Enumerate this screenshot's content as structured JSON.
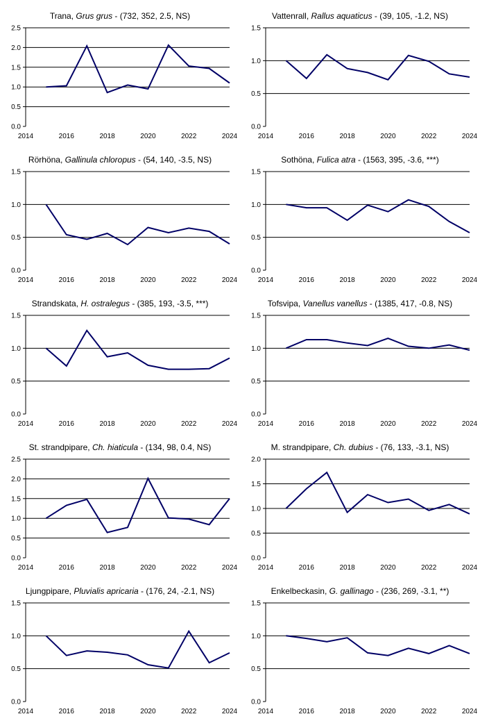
{
  "colors": {
    "line": "#000066",
    "axis": "#000000",
    "grid": "#000000",
    "background": "#ffffff"
  },
  "chart_data": [
    {
      "type": "line",
      "common_name": "Trana",
      "scientific_name": "Grus grus",
      "stats": " - (732, 352, 2.5, NS)",
      "x": [
        2015,
        2016,
        2017,
        2018,
        2019,
        2020,
        2021,
        2022,
        2023,
        2024
      ],
      "values": [
        1.0,
        1.03,
        2.04,
        0.86,
        1.05,
        0.95,
        2.06,
        1.53,
        1.47,
        1.1
      ],
      "ylim": [
        0,
        2.5
      ],
      "yticks": [
        "0.0",
        "0.5",
        "1.0",
        "1.5",
        "2.0",
        "2.5"
      ],
      "xlim": [
        2014,
        2024
      ],
      "xticks": [
        "2014",
        "2016",
        "2018",
        "2020",
        "2022",
        "2024"
      ],
      "grid": "horizontal"
    },
    {
      "type": "line",
      "common_name": "Vattenrall",
      "scientific_name": "Rallus aquaticus",
      "stats": " - (39, 105, -1.2, NS)",
      "x": [
        2015,
        2016,
        2017,
        2018,
        2019,
        2020,
        2021,
        2022,
        2023,
        2024
      ],
      "values": [
        1.0,
        0.73,
        1.09,
        0.88,
        0.82,
        0.71,
        1.08,
        0.99,
        0.8,
        0.75
      ],
      "ylim": [
        0,
        1.5
      ],
      "yticks": [
        "0.0",
        "0.5",
        "1.0",
        "1.5"
      ],
      "xlim": [
        2014,
        2024
      ],
      "xticks": [
        "2014",
        "2016",
        "2018",
        "2020",
        "2022",
        "2024"
      ],
      "grid": "horizontal"
    },
    {
      "type": "line",
      "common_name": "Rörhöna",
      "scientific_name": "Gallinula chloropus",
      "stats": " - (54, 140, -3.5, NS)",
      "x": [
        2015,
        2016,
        2017,
        2018,
        2019,
        2020,
        2021,
        2022,
        2023,
        2024
      ],
      "values": [
        1.0,
        0.54,
        0.47,
        0.56,
        0.39,
        0.65,
        0.57,
        0.64,
        0.59,
        0.4
      ],
      "ylim": [
        0,
        1.5
      ],
      "yticks": [
        "0.0",
        "0.5",
        "1.0",
        "1.5"
      ],
      "xlim": [
        2014,
        2024
      ],
      "xticks": [
        "2014",
        "2016",
        "2018",
        "2020",
        "2022",
        "2024"
      ],
      "grid": "horizontal"
    },
    {
      "type": "line",
      "common_name": "Sothöna",
      "scientific_name": "Fulica atra",
      "stats": " - (1563, 395, -3.6, ***)",
      "x": [
        2015,
        2016,
        2017,
        2018,
        2019,
        2020,
        2021,
        2022,
        2023,
        2024
      ],
      "values": [
        1.0,
        0.95,
        0.95,
        0.76,
        0.99,
        0.89,
        1.07,
        0.97,
        0.74,
        0.57
      ],
      "ylim": [
        0,
        1.5
      ],
      "yticks": [
        "0.0",
        "0.5",
        "1.0",
        "1.5"
      ],
      "xlim": [
        2014,
        2024
      ],
      "xticks": [
        "2014",
        "2016",
        "2018",
        "2020",
        "2022",
        "2024"
      ],
      "grid": "horizontal"
    },
    {
      "type": "line",
      "common_name": "Strandskata",
      "scientific_name": "H. ostralegus",
      "stats": " - (385, 193, -3.5, ***)",
      "x": [
        2015,
        2016,
        2017,
        2018,
        2019,
        2020,
        2021,
        2022,
        2023,
        2024
      ],
      "values": [
        1.0,
        0.73,
        1.27,
        0.87,
        0.93,
        0.74,
        0.68,
        0.68,
        0.69,
        0.85
      ],
      "ylim": [
        0,
        1.5
      ],
      "yticks": [
        "0.0",
        "0.5",
        "1.0",
        "1.5"
      ],
      "xlim": [
        2014,
        2024
      ],
      "xticks": [
        "2014",
        "2016",
        "2018",
        "2020",
        "2022",
        "2024"
      ],
      "grid": "horizontal"
    },
    {
      "type": "line",
      "common_name": "Tofsvipa",
      "scientific_name": "Vanellus vanellus",
      "stats": " - (1385, 417, -0.8, NS)",
      "x": [
        2015,
        2016,
        2017,
        2018,
        2019,
        2020,
        2021,
        2022,
        2023,
        2024
      ],
      "values": [
        1.0,
        1.13,
        1.13,
        1.08,
        1.04,
        1.15,
        1.03,
        1.0,
        1.05,
        0.97
      ],
      "ylim": [
        0,
        1.5
      ],
      "yticks": [
        "0.0",
        "0.5",
        "1.0",
        "1.5"
      ],
      "xlim": [
        2014,
        2024
      ],
      "xticks": [
        "2014",
        "2016",
        "2018",
        "2020",
        "2022",
        "2024"
      ],
      "grid": "horizontal"
    },
    {
      "type": "line",
      "common_name": "St. strandpipare",
      "scientific_name": "Ch. hiaticula",
      "stats": " - (134, 98, 0.4, NS)",
      "x": [
        2015,
        2016,
        2017,
        2018,
        2019,
        2020,
        2021,
        2022,
        2023,
        2024
      ],
      "values": [
        1.0,
        1.33,
        1.48,
        0.64,
        0.77,
        2.01,
        1.01,
        0.98,
        0.84,
        1.5
      ],
      "ylim": [
        0,
        2.5
      ],
      "yticks": [
        "0.0",
        "0.5",
        "1.0",
        "1.5",
        "2.0",
        "2.5"
      ],
      "xlim": [
        2014,
        2024
      ],
      "xticks": [
        "2014",
        "2016",
        "2018",
        "2020",
        "2022",
        "2024"
      ],
      "grid": "horizontal"
    },
    {
      "type": "line",
      "common_name": "M. strandpipare",
      "scientific_name": "Ch. dubius",
      "stats": " - (76, 133, -3.1, NS)",
      "x": [
        2015,
        2016,
        2017,
        2018,
        2019,
        2020,
        2021,
        2022,
        2023,
        2024
      ],
      "values": [
        1.0,
        1.4,
        1.73,
        0.92,
        1.28,
        1.12,
        1.19,
        0.96,
        1.08,
        0.89
      ],
      "ylim": [
        0,
        2.0
      ],
      "yticks": [
        "0.0",
        "0.5",
        "1.0",
        "1.5",
        "2.0"
      ],
      "xlim": [
        2014,
        2024
      ],
      "xticks": [
        "2014",
        "2016",
        "2018",
        "2020",
        "2022",
        "2024"
      ],
      "grid": "horizontal"
    },
    {
      "type": "line",
      "common_name": "Ljungpipare",
      "scientific_name": "Pluvialis apricaria",
      "stats": " - (176, 24, -2.1, NS)",
      "x": [
        2015,
        2016,
        2017,
        2018,
        2019,
        2020,
        2021,
        2022,
        2023,
        2024
      ],
      "values": [
        1.0,
        0.7,
        0.77,
        0.75,
        0.71,
        0.56,
        0.51,
        1.07,
        0.59,
        0.74
      ],
      "ylim": [
        0,
        1.5
      ],
      "yticks": [
        "0.0",
        "0.5",
        "1.0",
        "1.5"
      ],
      "xlim": [
        2014,
        2024
      ],
      "xticks": [
        "2014",
        "2016",
        "2018",
        "2020",
        "2022",
        "2024"
      ],
      "grid": "horizontal"
    },
    {
      "type": "line",
      "common_name": "Enkelbeckasin",
      "scientific_name": "G. gallinago",
      "stats": " - (236, 269, -3.1, **)",
      "x": [
        2015,
        2016,
        2017,
        2018,
        2019,
        2020,
        2021,
        2022,
        2023,
        2024
      ],
      "values": [
        1.0,
        0.96,
        0.91,
        0.97,
        0.74,
        0.7,
        0.81,
        0.73,
        0.85,
        0.73
      ],
      "ylim": [
        0,
        1.5
      ],
      "yticks": [
        "0.0",
        "0.5",
        "1.0",
        "1.5"
      ],
      "xlim": [
        2014,
        2024
      ],
      "xticks": [
        "2014",
        "2016",
        "2018",
        "2020",
        "2022",
        "2024"
      ],
      "grid": "horizontal"
    }
  ]
}
